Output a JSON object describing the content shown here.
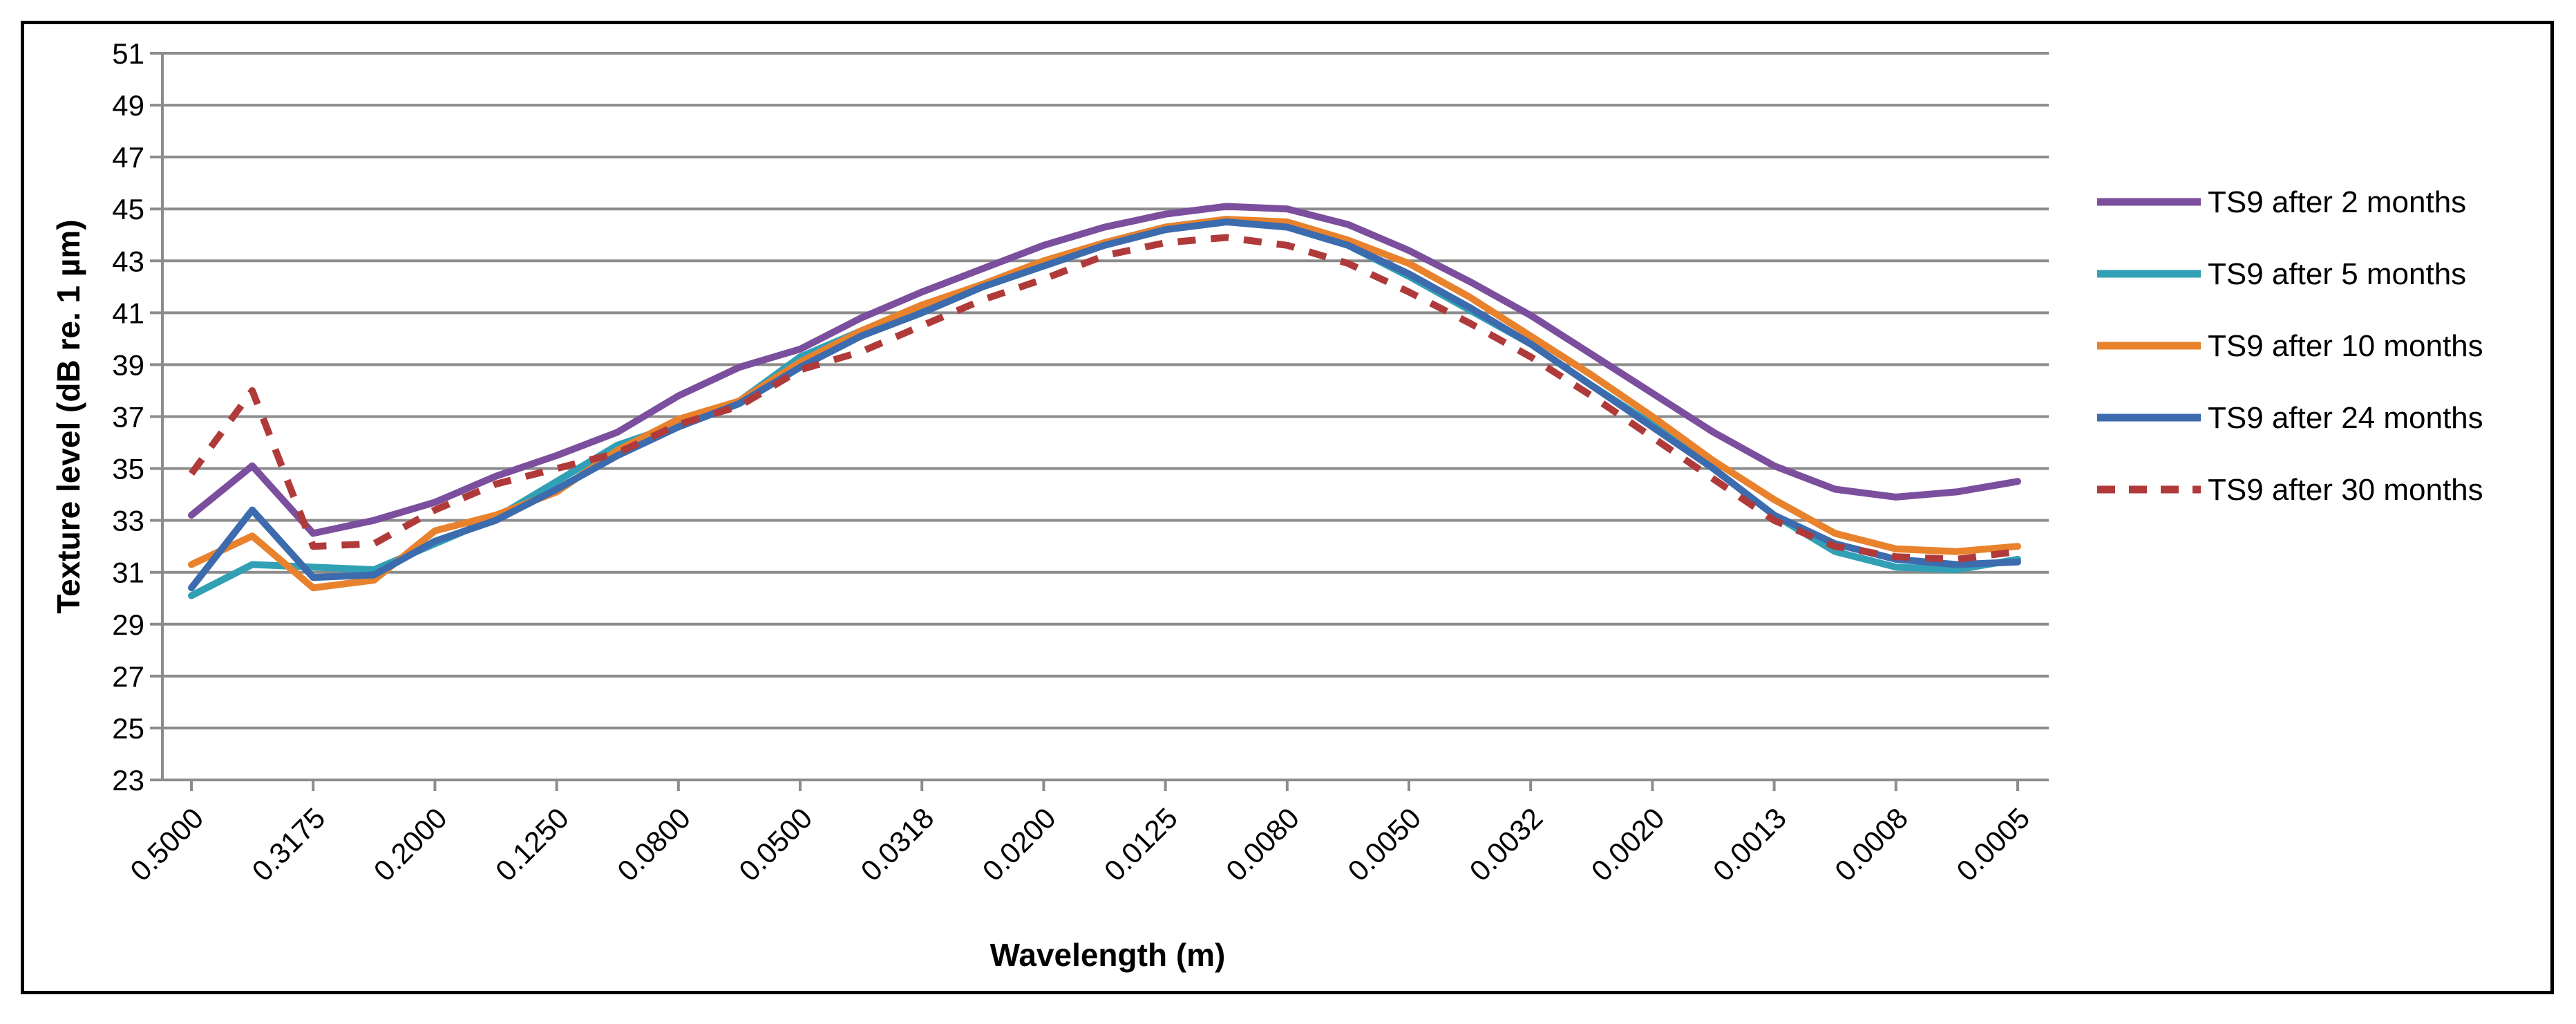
{
  "chart_data": {
    "type": "line",
    "title": "",
    "xlabel": "Wavelength (m)",
    "ylabel": "Texture level (dB re. 1 µm)",
    "ylim": [
      23,
      51
    ],
    "yticks": [
      "23",
      "25",
      "27",
      "29",
      "31",
      "33",
      "35",
      "37",
      "39",
      "41",
      "43",
      "45",
      "47",
      "49",
      "51"
    ],
    "xtick_labels": [
      "0.5000",
      "0.3175",
      "0.2000",
      "0.1250",
      "0.0800",
      "0.0500",
      "0.0318",
      "0.0200",
      "0.0125",
      "0.0080",
      "0.0050",
      "0.0032",
      "0.0020",
      "0.0013",
      "0.0008",
      "0.0005"
    ],
    "x_points_per_tick": 2,
    "grid": true,
    "legend_position": "right",
    "series": [
      {
        "name": "TS9 after 2 months",
        "color": "#7B4F9D",
        "dashed": false,
        "values": [
          33.2,
          35.1,
          32.5,
          33.0,
          33.7,
          34.7,
          35.5,
          36.4,
          37.8,
          38.9,
          39.6,
          40.8,
          41.8,
          42.7,
          43.6,
          44.3,
          44.8,
          45.1,
          45.0,
          44.4,
          43.4,
          42.2,
          40.9,
          39.4,
          37.9,
          36.4,
          35.1,
          34.2,
          33.9,
          34.1,
          34.5
        ]
      },
      {
        "name": "TS9 after 5 months",
        "color": "#31A0B5",
        "dashed": false,
        "values": [
          30.1,
          31.3,
          31.2,
          31.1,
          32.1,
          33.1,
          34.5,
          35.9,
          36.7,
          37.6,
          39.3,
          40.3,
          41.2,
          42.1,
          42.9,
          43.7,
          44.3,
          44.6,
          44.4,
          43.6,
          42.4,
          41.1,
          39.8,
          38.2,
          36.7,
          35.0,
          33.2,
          31.8,
          31.2,
          31.1,
          31.5
        ]
      },
      {
        "name": "TS9 after 10 months",
        "color": "#E8822D",
        "dashed": false,
        "values": [
          31.3,
          32.4,
          30.4,
          30.7,
          32.6,
          33.2,
          34.1,
          35.7,
          36.9,
          37.6,
          39.1,
          40.3,
          41.3,
          42.1,
          43.0,
          43.7,
          44.3,
          44.6,
          44.5,
          43.8,
          42.9,
          41.6,
          40.1,
          38.6,
          37.0,
          35.3,
          33.8,
          32.5,
          31.9,
          31.8,
          32.0
        ]
      },
      {
        "name": "TS9 after 24 months",
        "color": "#3C6BAE",
        "dashed": false,
        "values": [
          30.4,
          33.4,
          30.8,
          30.9,
          32.2,
          33.0,
          34.2,
          35.5,
          36.6,
          37.5,
          38.9,
          40.1,
          41.0,
          42.0,
          42.8,
          43.6,
          44.2,
          44.5,
          44.3,
          43.6,
          42.5,
          41.2,
          39.8,
          38.2,
          36.6,
          35.0,
          33.2,
          32.1,
          31.5,
          31.3,
          31.4
        ]
      },
      {
        "name": "TS9 after 30 months",
        "color": "#B03A3A",
        "dashed": true,
        "values": [
          34.8,
          38.0,
          32.0,
          32.1,
          33.4,
          34.4,
          35.0,
          35.6,
          36.7,
          37.4,
          38.8,
          39.5,
          40.5,
          41.5,
          42.3,
          43.2,
          43.7,
          43.9,
          43.6,
          42.9,
          41.8,
          40.6,
          39.3,
          37.8,
          36.2,
          34.6,
          33.0,
          32.0,
          31.6,
          31.5,
          31.8
        ]
      }
    ]
  }
}
